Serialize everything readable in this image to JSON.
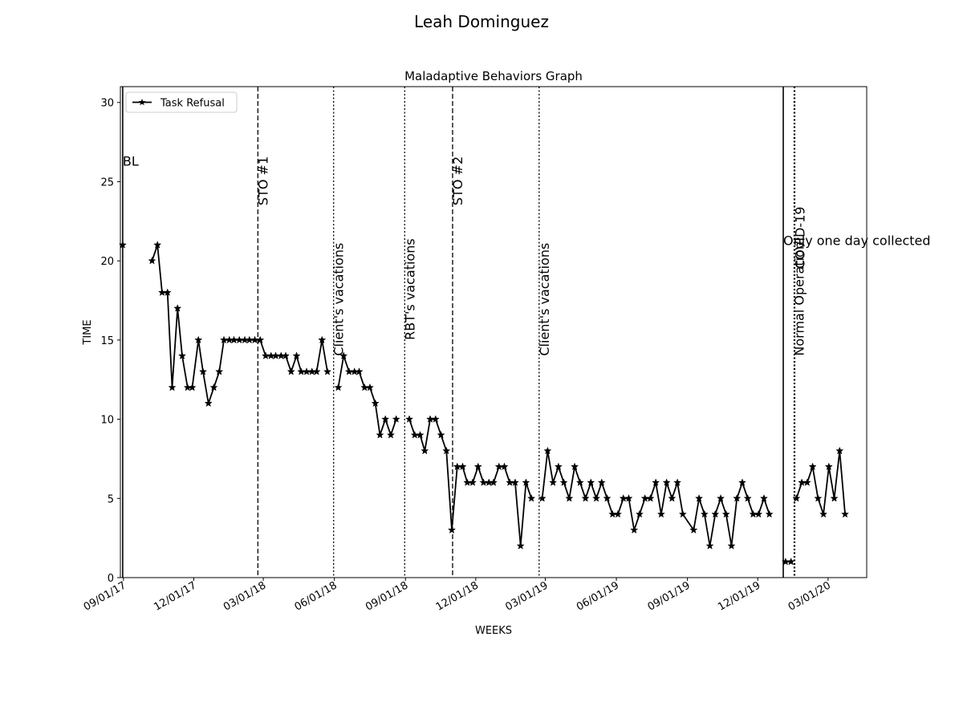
{
  "chart_data": {
    "type": "line",
    "suptitle": "Leah  Dominguez",
    "title": "Maladaptive Behaviors Graph",
    "xlabel": "WEEKS",
    "ylabel": "TIME",
    "ylim": [
      0,
      31
    ],
    "xlim": [
      "2017-08-28",
      "2020-04-20"
    ],
    "yticks": [
      0,
      5,
      10,
      15,
      20,
      25,
      30
    ],
    "xticks": [
      {
        "date": "2017-09-01",
        "label": "09/01/17"
      },
      {
        "date": "2017-12-01",
        "label": "12/01/17"
      },
      {
        "date": "2018-03-01",
        "label": "03/01/18"
      },
      {
        "date": "2018-06-01",
        "label": "06/01/18"
      },
      {
        "date": "2018-09-01",
        "label": "09/01/18"
      },
      {
        "date": "2018-12-01",
        "label": "12/01/18"
      },
      {
        "date": "2019-03-01",
        "label": "03/01/19"
      },
      {
        "date": "2019-06-01",
        "label": "06/01/19"
      },
      {
        "date": "2019-09-01",
        "label": "09/01/19"
      },
      {
        "date": "2019-12-01",
        "label": "12/01/19"
      },
      {
        "date": "2020-03-01",
        "label": "03/01/20"
      }
    ],
    "grid": false,
    "legend": {
      "placement": "upper-left",
      "entries": [
        "Task Refusal"
      ]
    },
    "series": [
      {
        "name": "Task Refusal",
        "color": "#000000",
        "marker": "star",
        "segments": [
          [
            [
              "2017-08-31",
              21
            ]
          ],
          [
            [
              "2017-10-08",
              20
            ],
            [
              "2017-10-15",
              21
            ],
            [
              "2017-10-21",
              18
            ],
            [
              "2017-10-28",
              18
            ],
            [
              "2017-11-03",
              12
            ],
            [
              "2017-11-10",
              17
            ],
            [
              "2017-11-16",
              14
            ],
            [
              "2017-11-23",
              12
            ],
            [
              "2017-11-29",
              12
            ],
            [
              "2017-12-07",
              15
            ],
            [
              "2017-12-13",
              13
            ],
            [
              "2017-12-20",
              11
            ],
            [
              "2017-12-27",
              12
            ],
            [
              "2018-01-03",
              13
            ],
            [
              "2018-01-09",
              15
            ],
            [
              "2018-01-16",
              15
            ],
            [
              "2018-01-22",
              15
            ],
            [
              "2018-01-29",
              15
            ],
            [
              "2018-02-05",
              15
            ],
            [
              "2018-02-11",
              15
            ],
            [
              "2018-02-18",
              15
            ],
            [
              "2018-02-25",
              15
            ],
            [
              "2018-03-04",
              14
            ],
            [
              "2018-03-11",
              14
            ],
            [
              "2018-03-17",
              14
            ],
            [
              "2018-03-24",
              14
            ],
            [
              "2018-03-30",
              14
            ],
            [
              "2018-04-06",
              13
            ],
            [
              "2018-04-13",
              14
            ],
            [
              "2018-04-19",
              13
            ],
            [
              "2018-04-26",
              13
            ],
            [
              "2018-05-03",
              13
            ],
            [
              "2018-05-09",
              13
            ],
            [
              "2018-05-16",
              15
            ],
            [
              "2018-05-23",
              13
            ]
          ],
          [
            [
              "2018-06-06",
              12
            ],
            [
              "2018-06-13",
              14
            ],
            [
              "2018-06-20",
              13
            ],
            [
              "2018-06-27",
              13
            ],
            [
              "2018-07-03",
              13
            ],
            [
              "2018-07-10",
              12
            ],
            [
              "2018-07-17",
              12
            ],
            [
              "2018-07-24",
              11
            ],
            [
              "2018-07-30",
              9
            ],
            [
              "2018-08-06",
              10
            ],
            [
              "2018-08-13",
              9
            ],
            [
              "2018-08-20",
              10
            ]
          ],
          [
            [
              "2018-09-06",
              10
            ],
            [
              "2018-09-13",
              9
            ],
            [
              "2018-09-20",
              9
            ],
            [
              "2018-09-26",
              8
            ],
            [
              "2018-10-03",
              10
            ],
            [
              "2018-10-10",
              10
            ],
            [
              "2018-10-17",
              9
            ],
            [
              "2018-10-24",
              8
            ],
            [
              "2018-10-31",
              3
            ],
            [
              "2018-11-07",
              7
            ],
            [
              "2018-11-14",
              7
            ],
            [
              "2018-11-20",
              6
            ],
            [
              "2018-11-27",
              6
            ],
            [
              "2018-12-04",
              7
            ],
            [
              "2018-12-11",
              6
            ],
            [
              "2018-12-18",
              6
            ],
            [
              "2018-12-24",
              6
            ],
            [
              "2018-12-31",
              7
            ],
            [
              "2019-01-07",
              7
            ],
            [
              "2019-01-14",
              6
            ],
            [
              "2019-01-21",
              6
            ],
            [
              "2019-01-28",
              2
            ],
            [
              "2019-02-04",
              6
            ],
            [
              "2019-02-11",
              5
            ]
          ],
          [
            [
              "2019-02-25",
              5
            ],
            [
              "2019-03-04",
              8
            ],
            [
              "2019-03-11",
              6
            ],
            [
              "2019-03-18",
              7
            ],
            [
              "2019-03-25",
              6
            ],
            [
              "2019-04-01",
              5
            ],
            [
              "2019-04-08",
              7
            ],
            [
              "2019-04-15",
              6
            ],
            [
              "2019-04-22",
              5
            ],
            [
              "2019-04-29",
              6
            ],
            [
              "2019-05-06",
              5
            ],
            [
              "2019-05-13",
              6
            ],
            [
              "2019-05-20",
              5
            ],
            [
              "2019-05-27",
              4
            ],
            [
              "2019-06-03",
              4
            ],
            [
              "2019-06-10",
              5
            ],
            [
              "2019-06-17",
              5
            ],
            [
              "2019-06-24",
              3
            ],
            [
              "2019-07-01",
              4
            ],
            [
              "2019-07-08",
              5
            ],
            [
              "2019-07-15",
              5
            ],
            [
              "2019-07-22",
              6
            ],
            [
              "2019-07-29",
              4
            ],
            [
              "2019-08-05",
              6
            ],
            [
              "2019-08-12",
              5
            ],
            [
              "2019-08-19",
              6
            ],
            [
              "2019-08-26",
              4
            ],
            [
              "2019-09-09",
              3
            ],
            [
              "2019-09-16",
              5
            ],
            [
              "2019-09-23",
              4
            ],
            [
              "2019-09-30",
              2
            ],
            [
              "2019-10-07",
              4
            ],
            [
              "2019-10-14",
              5
            ],
            [
              "2019-10-21",
              4
            ],
            [
              "2019-10-28",
              2
            ],
            [
              "2019-11-04",
              5
            ],
            [
              "2019-11-11",
              6
            ],
            [
              "2019-11-18",
              5
            ],
            [
              "2019-11-25",
              4
            ],
            [
              "2019-12-02",
              4
            ],
            [
              "2019-12-09",
              5
            ],
            [
              "2019-12-16",
              4
            ]
          ],
          [
            [
              "2020-01-06",
              1
            ],
            [
              "2020-01-13",
              1
            ]
          ],
          [
            [
              "2020-01-20",
              5
            ],
            [
              "2020-01-27",
              6
            ],
            [
              "2020-02-03",
              6
            ],
            [
              "2020-02-10",
              7
            ],
            [
              "2020-02-17",
              5
            ],
            [
              "2020-02-24",
              4
            ],
            [
              "2020-03-02",
              7
            ],
            [
              "2020-03-09",
              5
            ],
            [
              "2020-03-16",
              8
            ],
            [
              "2020-03-23",
              4
            ]
          ]
        ]
      }
    ],
    "phase_lines": [
      {
        "date": "2017-08-31",
        "style": "solid",
        "label": "BL",
        "label_orientation": "horizontal",
        "label_y": 26
      },
      {
        "date": "2018-02-22",
        "style": "dashed",
        "label": "STO #1",
        "label_orientation": "vertical",
        "label_y": 23.5
      },
      {
        "date": "2018-05-31",
        "style": "dotted",
        "label": "Client's vacations",
        "label_orientation": "vertical",
        "label_y": 14
      },
      {
        "date": "2018-08-31",
        "style": "dotted",
        "label": "RBT's vacations",
        "label_orientation": "vertical",
        "label_y": 15
      },
      {
        "date": "2018-11-01",
        "style": "dashed",
        "label": "STO #2",
        "label_orientation": "vertical",
        "label_y": 23.5
      },
      {
        "date": "2019-02-21",
        "style": "dotted",
        "label": "Client's vacations",
        "label_orientation": "vertical",
        "label_y": 14
      },
      {
        "date": "2020-01-03",
        "style": "solid",
        "label": "Only one day collected",
        "label_orientation": "horizontal",
        "label_y": 21
      },
      {
        "date": "2020-01-17",
        "style": "dotted",
        "label": "Normal Operation",
        "label_orientation": "vertical",
        "label_y": 14
      },
      {
        "date": "2020-01-18",
        "style": "dotted",
        "label": "COVID-19",
        "label_orientation": "vertical",
        "label_y": 19.5
      }
    ]
  }
}
